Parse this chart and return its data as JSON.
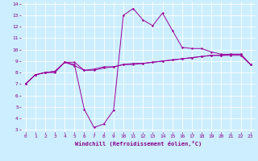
{
  "xlabel": "Windchill (Refroidissement éolien,°C)",
  "background_color": "#cceeff",
  "grid_color": "#ffffff",
  "line_color": "#990099",
  "xlim": [
    -0.5,
    23.5
  ],
  "ylim": [
    2.8,
    14.2
  ],
  "xticks": [
    0,
    1,
    2,
    3,
    4,
    5,
    6,
    7,
    8,
    9,
    10,
    11,
    12,
    13,
    14,
    15,
    16,
    17,
    18,
    19,
    20,
    21,
    22,
    23
  ],
  "yticks": [
    3,
    4,
    5,
    6,
    7,
    8,
    9,
    10,
    11,
    12,
    13,
    14
  ],
  "curve1_x": [
    0,
    1,
    2,
    3,
    4,
    5,
    6,
    7,
    8,
    9,
    10,
    11,
    12,
    13,
    14,
    15,
    16,
    17,
    18,
    19,
    20,
    21,
    22,
    23
  ],
  "curve1_y": [
    7.0,
    7.8,
    8.0,
    8.0,
    8.9,
    8.9,
    8.2,
    8.3,
    8.5,
    8.5,
    8.7,
    8.8,
    8.8,
    8.9,
    9.0,
    9.1,
    9.2,
    9.3,
    9.4,
    9.5,
    9.5,
    9.6,
    9.6,
    8.7
  ],
  "curve2_x": [
    0,
    1,
    2,
    3,
    4,
    5,
    6,
    7,
    8,
    9,
    10,
    11,
    12,
    13,
    14,
    15,
    16,
    17,
    18,
    19,
    20,
    21,
    22,
    23
  ],
  "curve2_y": [
    7.0,
    7.8,
    8.0,
    8.1,
    8.9,
    8.7,
    4.8,
    3.2,
    3.5,
    4.7,
    13.0,
    13.6,
    12.6,
    12.1,
    13.2,
    11.7,
    10.2,
    10.1,
    10.1,
    9.8,
    9.6,
    9.6,
    9.6,
    8.7
  ],
  "curve3_x": [
    0,
    1,
    2,
    3,
    4,
    5,
    6,
    7,
    8,
    9,
    10,
    11,
    12,
    13,
    14,
    15,
    16,
    17,
    18,
    19,
    20,
    21,
    22,
    23
  ],
  "curve3_y": [
    7.0,
    7.8,
    8.0,
    8.1,
    8.9,
    8.6,
    8.2,
    8.2,
    8.4,
    8.5,
    8.7,
    8.7,
    8.8,
    8.9,
    9.0,
    9.1,
    9.2,
    9.3,
    9.4,
    9.5,
    9.5,
    9.5,
    9.5,
    8.7
  ],
  "tick_fontsize": 4.5,
  "xlabel_fontsize": 5.0,
  "linewidth": 0.7,
  "markersize": 2.0
}
